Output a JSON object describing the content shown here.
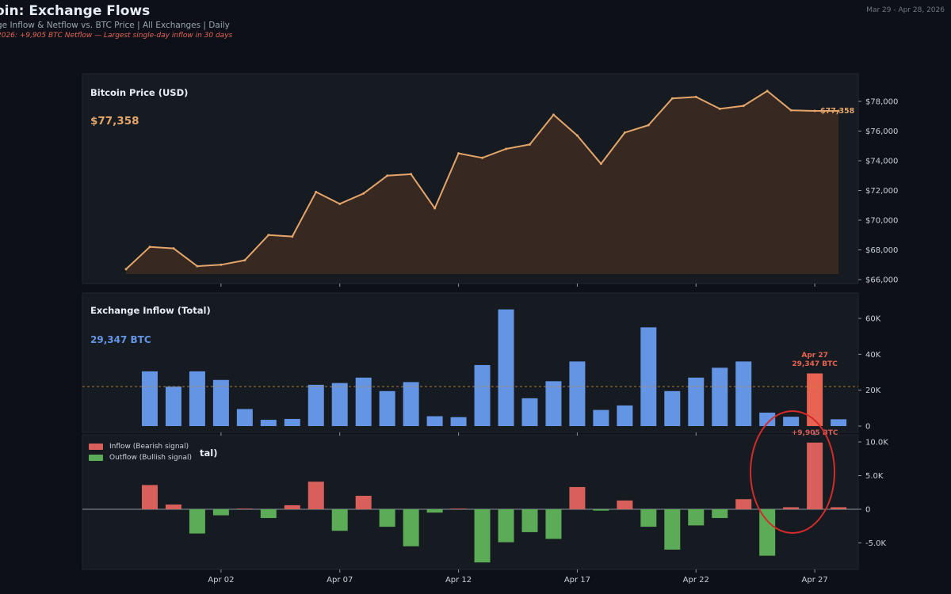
{
  "header": {
    "title": "oin: Exchange Flows",
    "subtitle": "ge Inflow & Netflow vs. BTC Price  |  All Exchanges  |  Daily",
    "alert": "2026: +9,905 BTC Netflow — Largest single-day inflow in 30 days",
    "date_range": "Mar 29 - Apr 28, 2026"
  },
  "colors": {
    "price_line": "#e4a56b",
    "price_fill": "#3b2a22",
    "inflow_bar": "#6495e4",
    "inflow_highlight": "#e86452",
    "netflow_positive": "#d9605a",
    "netflow_negative": "#5cab56",
    "dashed_average": "#c78a3a",
    "panel_bg": "#161b22",
    "circle": "#d42a2a"
  },
  "chart_data": [
    {
      "type": "line",
      "title": "Bitcoin Price (USD)",
      "current_value_label": "$77,358",
      "end_label": "$77,358",
      "x": [
        "Mar 29",
        "Mar 30",
        "Mar 31",
        "Apr 01",
        "Apr 02",
        "Apr 03",
        "Apr 04",
        "Apr 05",
        "Apr 06",
        "Apr 07",
        "Apr 08",
        "Apr 09",
        "Apr 10",
        "Apr 11",
        "Apr 12",
        "Apr 13",
        "Apr 14",
        "Apr 15",
        "Apr 16",
        "Apr 17",
        "Apr 18",
        "Apr 19",
        "Apr 20",
        "Apr 21",
        "Apr 22",
        "Apr 23",
        "Apr 24",
        "Apr 25",
        "Apr 26",
        "Apr 27",
        "Apr 28"
      ],
      "values": [
        66700,
        68200,
        68100,
        66900,
        67000,
        67300,
        69000,
        68900,
        71900,
        71100,
        71800,
        73000,
        73100,
        70800,
        74500,
        74200,
        74800,
        75100,
        77100,
        75700,
        73800,
        75900,
        76400,
        78200,
        78300,
        77500,
        77700,
        78700,
        77400,
        77358,
        77358
      ],
      "yticks": [
        66000,
        68000,
        70000,
        72000,
        74000,
        76000,
        78000
      ],
      "ytick_labels": [
        "$66,000",
        "$68,000",
        "$70,000",
        "$72,000",
        "$74,000",
        "$76,000",
        "$78,000"
      ],
      "ylim": [
        65800,
        79200
      ]
    },
    {
      "type": "bar",
      "title": "Exchange Inflow (Total)",
      "current_value_label": "29,347 BTC",
      "annotation": {
        "date": "Apr 27",
        "value_label": "29,347 BTC",
        "category": "Apr 27"
      },
      "categories": [
        "Mar 30",
        "Mar 31",
        "Apr 01",
        "Apr 02",
        "Apr 03",
        "Apr 04",
        "Apr 05",
        "Apr 06",
        "Apr 07",
        "Apr 08",
        "Apr 09",
        "Apr 10",
        "Apr 11",
        "Apr 12",
        "Apr 13",
        "Apr 14",
        "Apr 15",
        "Apr 16",
        "Apr 17",
        "Apr 18",
        "Apr 19",
        "Apr 20",
        "Apr 21",
        "Apr 22",
        "Apr 23",
        "Apr 24",
        "Apr 25",
        "Apr 26",
        "Apr 27",
        "Apr 28"
      ],
      "values": [
        30500,
        22000,
        30500,
        25700,
        9500,
        3500,
        4000,
        23000,
        24000,
        27000,
        19500,
        24500,
        5500,
        5000,
        34000,
        65000,
        15500,
        25000,
        36000,
        9000,
        11500,
        55000,
        19500,
        27000,
        32500,
        36000,
        7500,
        5200,
        29347,
        3800
      ],
      "highlight_index": 28,
      "average": 22000,
      "yticks": [
        0,
        20000,
        40000,
        60000
      ],
      "ytick_labels": [
        "0",
        "20K",
        "40K",
        "60K"
      ],
      "ylim": [
        0,
        67000
      ]
    },
    {
      "type": "bar",
      "title_suffix": "tal)",
      "annotation": {
        "value_label": "+9,905 BTC",
        "category": "Apr 27"
      },
      "legend": [
        "Inflow (Bearish signal)",
        "Outflow (Bullish signal)"
      ],
      "categories": [
        "Mar 30",
        "Mar 31",
        "Apr 01",
        "Apr 02",
        "Apr 03",
        "Apr 04",
        "Apr 05",
        "Apr 06",
        "Apr 07",
        "Apr 08",
        "Apr 09",
        "Apr 10",
        "Apr 11",
        "Apr 12",
        "Apr 13",
        "Apr 14",
        "Apr 15",
        "Apr 16",
        "Apr 17",
        "Apr 18",
        "Apr 19",
        "Apr 20",
        "Apr 21",
        "Apr 22",
        "Apr 23",
        "Apr 24",
        "Apr 25",
        "Apr 26",
        "Apr 27",
        "Apr 28"
      ],
      "values": [
        3600,
        700,
        -3600,
        -900,
        100,
        -1300,
        600,
        4100,
        -3200,
        2000,
        -2600,
        -5500,
        -500,
        100,
        -7900,
        -4900,
        -3400,
        -4400,
        3300,
        -200,
        1300,
        -2600,
        -6000,
        -2400,
        -1300,
        1500,
        -6900,
        300,
        9905,
        300
      ],
      "yticks": [
        -5000,
        0,
        5000,
        10000
      ],
      "ytick_labels": [
        "-5.0K",
        "0",
        "5.0K",
        "10.0K"
      ],
      "ylim": [
        -8600,
        10800
      ]
    }
  ],
  "x_axis": {
    "ticks": [
      "Apr 02",
      "Apr 07",
      "Apr 12",
      "Apr 17",
      "Apr 22",
      "Apr 27"
    ],
    "tick_indices": [
      4,
      9,
      14,
      19,
      24,
      29
    ]
  }
}
